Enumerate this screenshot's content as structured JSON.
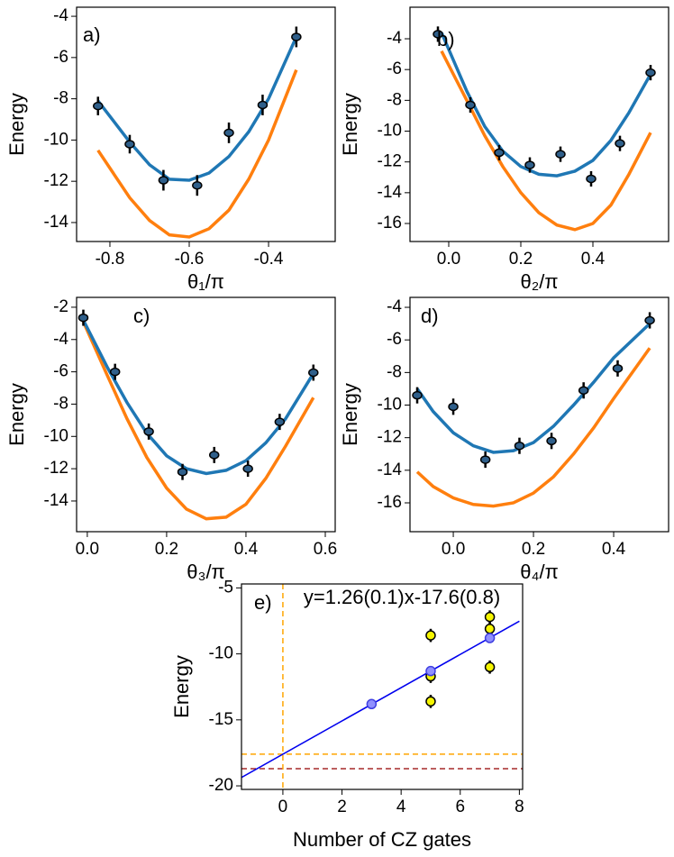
{
  "chart_data": [
    {
      "type": "scatter",
      "label": "a)",
      "xlabel": "θ₁/π",
      "ylabel": "Energy",
      "xlim": [
        -0.884,
        -0.232
      ],
      "ylim": [
        -14.92,
        -3.56
      ],
      "xticks": [
        -0.8,
        -0.6,
        -0.4
      ],
      "yticks": [
        -4,
        -6,
        -8,
        -10,
        -12,
        -14
      ],
      "series": [
        {
          "kind": "line",
          "color": "#ff7f0e",
          "x": [
            -0.83,
            -0.75,
            -0.7,
            -0.65,
            -0.6,
            -0.55,
            -0.5,
            -0.45,
            -0.4,
            -0.33
          ],
          "values": [
            -10.5,
            -12.8,
            -13.9,
            -14.6,
            -14.7,
            -14.3,
            -13.4,
            -11.9,
            -10.0,
            -6.6
          ]
        },
        {
          "kind": "line",
          "color": "#1f77b4",
          "x": [
            -0.83,
            -0.75,
            -0.7,
            -0.65,
            -0.6,
            -0.55,
            -0.5,
            -0.45,
            -0.4,
            -0.33
          ],
          "values": [
            -8.1,
            -10.1,
            -11.2,
            -11.9,
            -11.95,
            -11.6,
            -10.8,
            -9.6,
            -8.0,
            -5.0
          ]
        },
        {
          "kind": "points",
          "color": "#2f5f8a",
          "edgecolor": "#000000",
          "x": [
            -0.83,
            -0.75,
            -0.665,
            -0.58,
            -0.5,
            -0.415,
            -0.33
          ],
          "values": [
            -8.35,
            -10.2,
            -11.95,
            -12.2,
            -9.65,
            -8.3,
            -5.0
          ],
          "errors": [
            0.45,
            0.45,
            0.5,
            0.5,
            0.5,
            0.5,
            0.5
          ]
        }
      ]
    },
    {
      "type": "scatter",
      "label": "b)",
      "xlabel": "θ₂/π",
      "ylabel": "Energy",
      "xlim": [
        -0.1075,
        0.61
      ],
      "ylim": [
        -17.17,
        -1.95
      ],
      "xticks": [
        {
          "value": 0,
          "label": "0.0"
        },
        0.2,
        0.4
      ],
      "yticks": [
        -4,
        -6,
        -8,
        -10,
        -12,
        -14,
        -16
      ],
      "series": [
        {
          "kind": "line",
          "color": "#ff7f0e",
          "x": [
            -0.02,
            0.05,
            0.1,
            0.15,
            0.2,
            0.25,
            0.3,
            0.35,
            0.4,
            0.45,
            0.5,
            0.56
          ],
          "values": [
            -4.8,
            -8.0,
            -10.3,
            -12.3,
            -14.0,
            -15.3,
            -16.1,
            -16.4,
            -16.0,
            -14.8,
            -12.8,
            -10.1
          ]
        },
        {
          "kind": "line",
          "color": "#1f77b4",
          "x": [
            -0.02,
            0.05,
            0.1,
            0.15,
            0.2,
            0.25,
            0.3,
            0.35,
            0.4,
            0.45,
            0.5,
            0.56
          ],
          "values": [
            -3.6,
            -7.4,
            -9.7,
            -11.3,
            -12.3,
            -12.8,
            -12.9,
            -12.6,
            -11.9,
            -10.6,
            -8.8,
            -6.3
          ]
        },
        {
          "kind": "points",
          "color": "#2f5f8a",
          "edgecolor": "#000000",
          "x": [
            -0.03,
            0.06,
            0.14,
            0.225,
            0.31,
            0.395,
            0.475,
            0.56
          ],
          "values": [
            -3.7,
            -8.3,
            -11.4,
            -12.2,
            -11.5,
            -13.1,
            -10.8,
            -6.2
          ],
          "errors": [
            0.5,
            0.5,
            0.5,
            0.5,
            0.5,
            0.5,
            0.5,
            0.5
          ]
        }
      ]
    },
    {
      "type": "scatter",
      "label": "c)",
      "xlabel": "θ₃/π",
      "ylabel": "Energy",
      "xlim": [
        -0.027,
        0.625
      ],
      "ylim": [
        -15.9,
        -1.39
      ],
      "xticks": [
        {
          "value": 0,
          "label": "0.0"
        },
        0.2,
        0.4,
        0.6
      ],
      "yticks": [
        -2,
        -4,
        -6,
        -8,
        -10,
        -12,
        -14
      ],
      "series": [
        {
          "kind": "line",
          "color": "#ff7f0e",
          "x": [
            -0.01,
            0.05,
            0.1,
            0.15,
            0.2,
            0.25,
            0.3,
            0.35,
            0.4,
            0.45,
            0.5,
            0.57
          ],
          "values": [
            -2.9,
            -6.2,
            -8.9,
            -11.3,
            -13.2,
            -14.5,
            -15.1,
            -15.0,
            -14.2,
            -12.6,
            -10.6,
            -7.6
          ]
        },
        {
          "kind": "line",
          "color": "#1f77b4",
          "x": [
            -0.01,
            0.05,
            0.1,
            0.15,
            0.2,
            0.25,
            0.3,
            0.35,
            0.4,
            0.45,
            0.5,
            0.57
          ],
          "values": [
            -2.8,
            -5.7,
            -7.9,
            -9.8,
            -11.2,
            -12.0,
            -12.3,
            -12.1,
            -11.5,
            -10.4,
            -8.9,
            -6.1
          ]
        },
        {
          "kind": "points",
          "color": "#2f5f8a",
          "edgecolor": "#000000",
          "x": [
            -0.01,
            0.07,
            0.155,
            0.24,
            0.32,
            0.405,
            0.485,
            0.57
          ],
          "values": [
            -2.65,
            -6.0,
            -9.7,
            -12.2,
            -11.15,
            -12.0,
            -9.1,
            -6.05
          ],
          "errors": [
            0.5,
            0.5,
            0.5,
            0.5,
            0.5,
            0.5,
            0.5,
            0.5
          ]
        }
      ]
    },
    {
      "type": "scatter",
      "label": "d)",
      "xlabel": "θ₄/π",
      "ylabel": "Energy",
      "xlim": [
        -0.108,
        0.537
      ],
      "ylim": [
        -17.77,
        -3.39
      ],
      "xticks": [
        {
          "value": 0,
          "label": "0.0"
        },
        0.2,
        0.4
      ],
      "yticks": [
        -4,
        -6,
        -8,
        -10,
        -12,
        -14,
        -16
      ],
      "series": [
        {
          "kind": "line",
          "color": "#ff7f0e",
          "x": [
            -0.09,
            -0.05,
            0.0,
            0.05,
            0.1,
            0.15,
            0.2,
            0.25,
            0.3,
            0.35,
            0.4,
            0.49
          ],
          "values": [
            -14.1,
            -15.0,
            -15.7,
            -16.1,
            -16.2,
            -16.0,
            -15.4,
            -14.4,
            -13.0,
            -11.4,
            -9.6,
            -6.5
          ]
        },
        {
          "kind": "line",
          "color": "#1f77b4",
          "x": [
            -0.09,
            -0.05,
            0.0,
            0.05,
            0.1,
            0.15,
            0.2,
            0.25,
            0.3,
            0.35,
            0.4,
            0.49
          ],
          "values": [
            -9.0,
            -10.4,
            -11.7,
            -12.5,
            -12.9,
            -12.8,
            -12.3,
            -11.3,
            -10.0,
            -8.6,
            -7.1,
            -5.0
          ]
        },
        {
          "kind": "points",
          "color": "#2f5f8a",
          "edgecolor": "#000000",
          "x": [
            -0.09,
            0.0,
            0.08,
            0.165,
            0.245,
            0.325,
            0.41,
            0.49
          ],
          "values": [
            -9.4,
            -10.1,
            -13.35,
            -12.5,
            -12.2,
            -9.1,
            -7.75,
            -4.8
          ],
          "errors": [
            0.5,
            0.5,
            0.5,
            0.5,
            0.5,
            0.5,
            0.5,
            0.5
          ]
        }
      ]
    },
    {
      "type": "scatter",
      "label": "e)",
      "annotation": "y=1.26(0.1)x-17.6(0.8)",
      "xlabel": "Number of CZ gates",
      "ylabel": "Energy",
      "xlim": [
        -1.4,
        8.11
      ],
      "ylim": [
        -20.27,
        -4.7
      ],
      "xticks": [
        0,
        2,
        4,
        6,
        8
      ],
      "yticks": [
        -5,
        -10,
        -15,
        -20
      ],
      "hlines": [
        {
          "value": -17.6,
          "color": "#ffa500"
        },
        {
          "value": -18.7,
          "color": "#a52a2a"
        }
      ],
      "vlines": [
        {
          "value": 0,
          "color": "#ffa500"
        }
      ],
      "series": [
        {
          "kind": "line",
          "color": "#0000ee",
          "x": [
            -1.5,
            8
          ],
          "values": [
            -19.49,
            -7.52
          ]
        },
        {
          "kind": "points",
          "color": "#f5f500",
          "edgecolor": "#000000",
          "x": [
            5,
            5,
            5,
            7,
            7,
            7
          ],
          "values": [
            -8.6,
            -11.7,
            -13.6,
            -7.2,
            -8.1,
            -11.0
          ],
          "errors": [
            0.5,
            0.5,
            0.5,
            0.5,
            0.5,
            0.5
          ]
        },
        {
          "kind": "points",
          "color": "#9090ff",
          "edgecolor": "#4040e0",
          "x": [
            3,
            5,
            7
          ],
          "values": [
            -13.8,
            -11.3,
            -8.8
          ],
          "errors": [
            0.3,
            0.3,
            0.3
          ]
        }
      ]
    }
  ]
}
